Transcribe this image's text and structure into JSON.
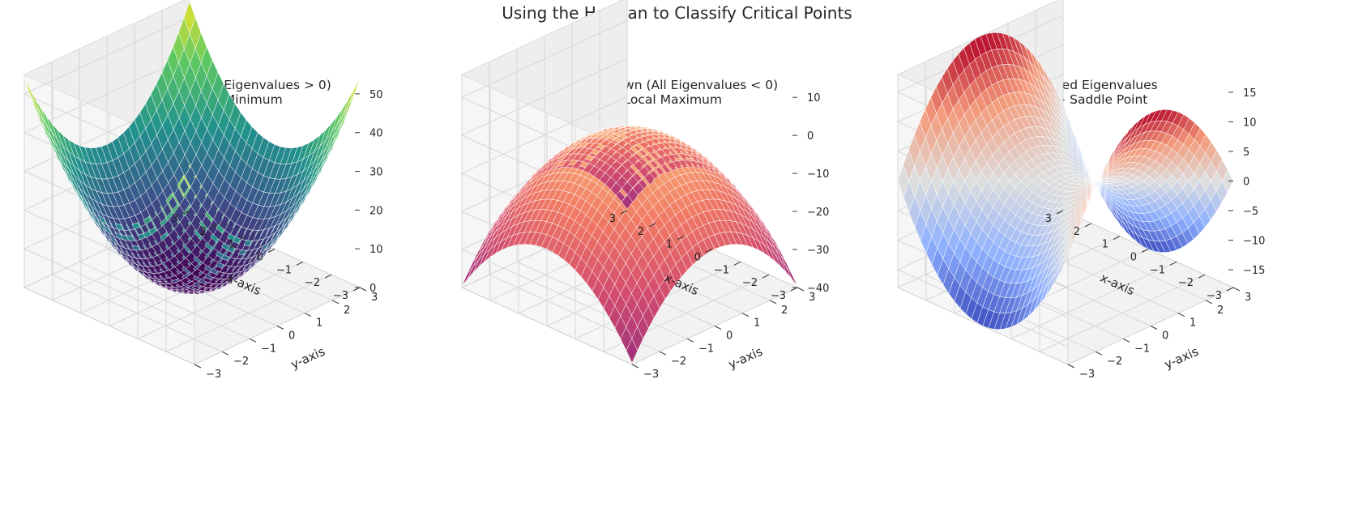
{
  "figure_title": "Using the Hessian to Classify Critical Points",
  "chart_data": [
    {
      "type": "surface3d",
      "title_lines": [
        "Concave Up (All Eigenvalues > 0)",
        "-> Local Minimum"
      ],
      "function": "x^2 + y^2 style paraboloid",
      "colormap": "viridis",
      "xlabel": "x-axis",
      "ylabel": "y-axis",
      "xlim": [
        -3,
        3
      ],
      "ylim": [
        -3,
        3
      ],
      "zlim": [
        0,
        55
      ],
      "x_ticks": [
        3,
        2,
        1,
        0,
        -1,
        -2,
        -3
      ],
      "y_ticks": [
        3,
        2,
        1,
        0,
        -1,
        -2,
        -3
      ],
      "z_ticks": [
        0,
        10,
        20,
        30,
        40,
        50
      ],
      "z_tick_labels": [
        "0",
        "10",
        "20",
        "30",
        "40",
        "50"
      ]
    },
    {
      "type": "surface3d",
      "title_lines": [
        "Concave Down (All Eigenvalues < 0)",
        "-> Local Maximum"
      ],
      "function": "-(x^2 + y^2) style paraboloid",
      "colormap": "magma",
      "xlabel": "x-axis",
      "ylabel": "y-axis",
      "xlim": [
        -3,
        3
      ],
      "ylim": [
        -3,
        3
      ],
      "zlim": [
        -40,
        16
      ],
      "x_ticks": [
        3,
        2,
        1,
        0,
        -1,
        -2,
        -3
      ],
      "y_ticks": [
        3,
        2,
        1,
        0,
        -1,
        -2,
        -3
      ],
      "z_ticks": [
        -40,
        -30,
        -20,
        -10,
        0,
        10
      ],
      "z_tick_labels": [
        "−40",
        "−30",
        "−20",
        "−10",
        "0",
        "10"
      ]
    },
    {
      "type": "surface3d",
      "title_lines": [
        "Mixed Eigenvalues",
        "-> Saddle Point"
      ],
      "function": "x^2 - y^2 style saddle",
      "colormap": "coolwarm",
      "xlabel": "x-axis",
      "ylabel": "y-axis",
      "xlim": [
        -3,
        3
      ],
      "ylim": [
        -3,
        3
      ],
      "zlim": [
        -18,
        18
      ],
      "x_ticks": [
        3,
        2,
        1,
        0,
        -1,
        -2,
        -3
      ],
      "y_ticks": [
        3,
        2,
        1,
        0,
        -1,
        -2,
        -3
      ],
      "z_ticks": [
        -15,
        -10,
        -5,
        0,
        5,
        10,
        15
      ],
      "z_tick_labels": [
        "−15",
        "−10",
        "−5",
        "0",
        "5",
        "10",
        "15"
      ]
    }
  ]
}
